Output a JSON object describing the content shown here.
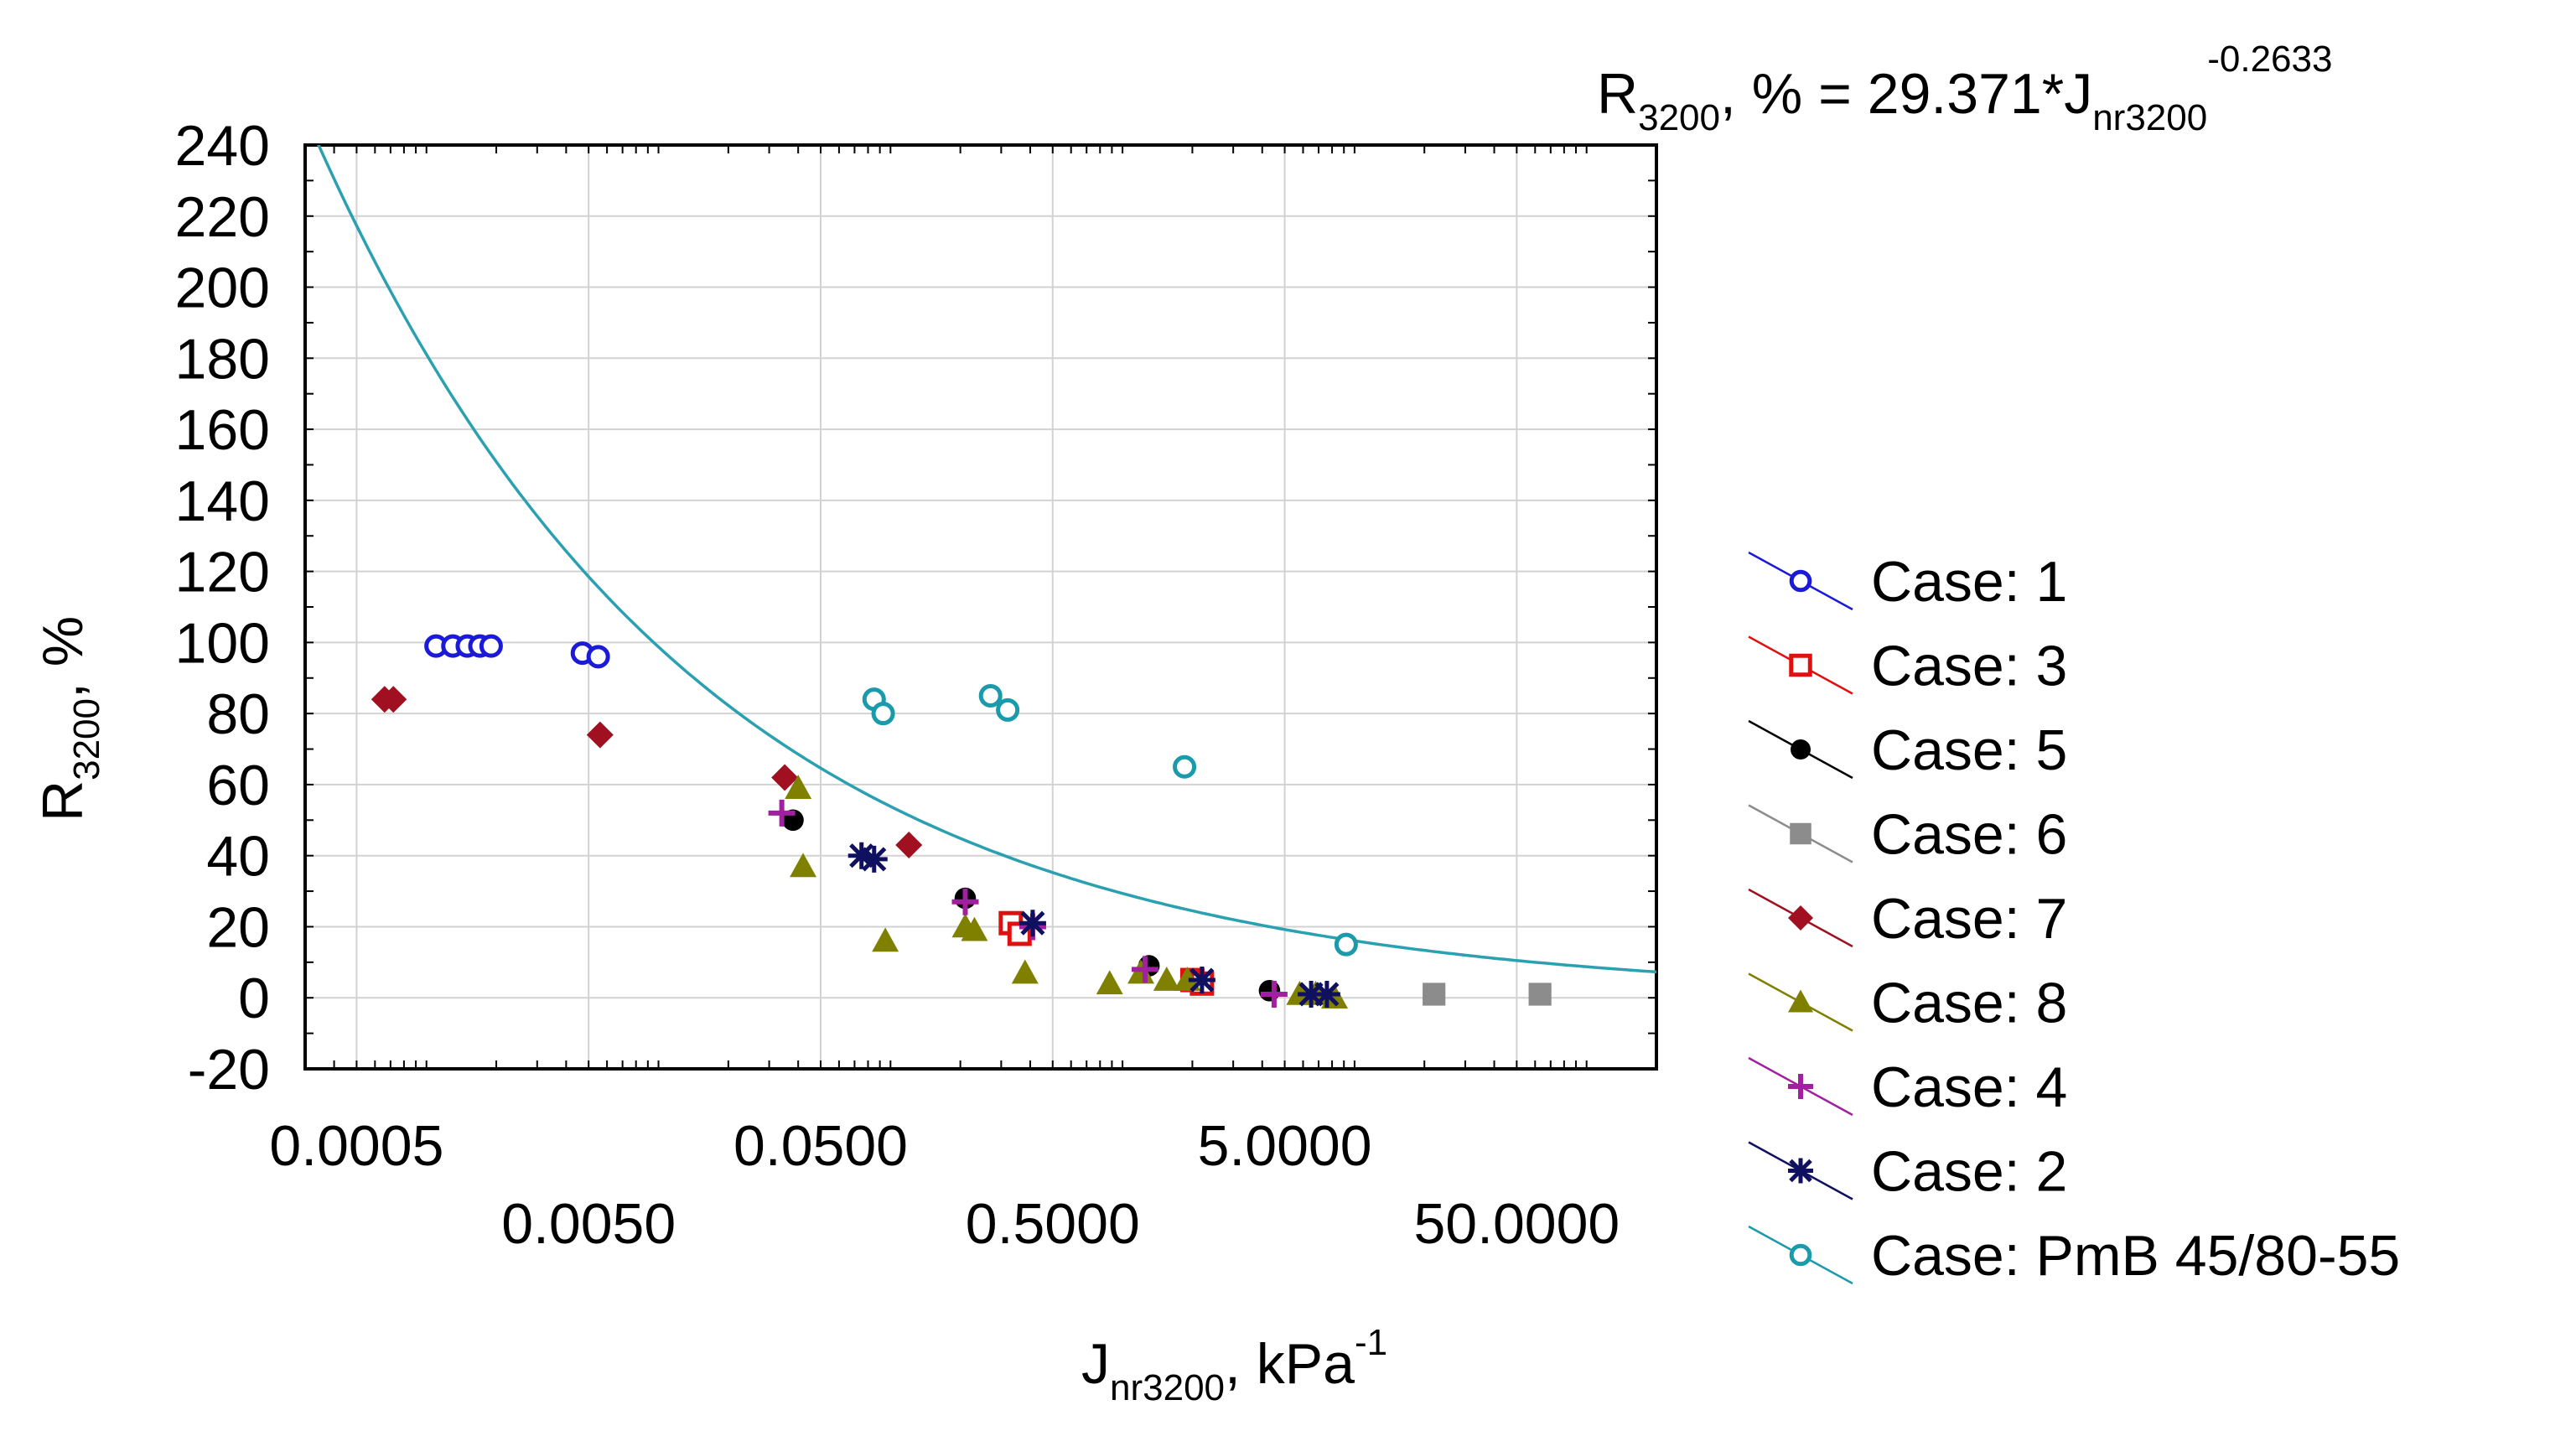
{
  "chart_data": {
    "type": "scatter",
    "title": "",
    "equation": {
      "lhs_main": "R",
      "lhs_sub": "3200",
      "middle": ", % = 29.371*J",
      "rhs_sub": "nr3200",
      "exponent": "-0.2633"
    },
    "fit": {
      "a": 29.371,
      "b": -0.2633,
      "color": "#2aa0b0"
    },
    "xlabel": {
      "main": "J",
      "sub": "nr3200",
      "rest": ", kPa",
      "sup": "-1"
    },
    "ylabel": {
      "main": "R",
      "sub": "3200",
      "rest": ", %"
    },
    "x_scale": "log",
    "xlim": [
      0.0003,
      200
    ],
    "ylim": [
      -20,
      240
    ],
    "y_ticks": [
      -20,
      0,
      20,
      40,
      60,
      80,
      100,
      120,
      140,
      160,
      180,
      200,
      220,
      240
    ],
    "y_tick_labels": [
      "-20",
      "0",
      "20",
      "40",
      "60",
      "80",
      "100",
      "120",
      "140",
      "160",
      "180",
      "200",
      "220",
      "240"
    ],
    "x_ticks": [
      0.0005,
      0.005,
      0.05,
      0.5,
      5,
      50
    ],
    "x_tick_labels": [
      "0.0005",
      "0.0050",
      "0.0500",
      "0.5000",
      "5.0000",
      "50.0000"
    ],
    "grid": true,
    "legend_position": "right",
    "series": [
      {
        "name": "Case: 1",
        "marker": "circle-open",
        "color": "#1a1ad8",
        "points": [
          [
            0.0011,
            99
          ],
          [
            0.0013,
            99
          ],
          [
            0.0015,
            99
          ],
          [
            0.0017,
            99
          ],
          [
            0.0019,
            99
          ],
          [
            0.0047,
            97
          ],
          [
            0.0055,
            96
          ]
        ]
      },
      {
        "name": "Case: 3",
        "marker": "square-open",
        "color": "#e01010",
        "points": [
          [
            0.33,
            21
          ],
          [
            0.36,
            18
          ],
          [
            2.0,
            5
          ],
          [
            2.2,
            4
          ]
        ]
      },
      {
        "name": "Case: 5",
        "marker": "circle-filled",
        "color": "#000000",
        "points": [
          [
            0.038,
            50
          ],
          [
            0.21,
            28
          ],
          [
            1.3,
            9
          ],
          [
            4.3,
            2
          ]
        ]
      },
      {
        "name": "Case: 6",
        "marker": "square-filled",
        "color": "#8c8c8c",
        "points": [
          [
            22,
            1
          ],
          [
            63,
            1
          ]
        ]
      },
      {
        "name": "Case: 7",
        "marker": "diamond-filled",
        "color": "#a01020",
        "points": [
          [
            0.00066,
            84
          ],
          [
            0.00072,
            84
          ],
          [
            0.0056,
            74
          ],
          [
            0.035,
            62
          ],
          [
            0.12,
            43
          ]
        ]
      },
      {
        "name": "Case: 8",
        "marker": "triangle-filled",
        "color": "#808000",
        "points": [
          [
            0.04,
            59
          ],
          [
            0.042,
            37
          ],
          [
            0.095,
            16
          ],
          [
            0.21,
            20
          ],
          [
            0.23,
            19
          ],
          [
            0.38,
            7
          ],
          [
            0.88,
            4
          ],
          [
            1.2,
            7
          ],
          [
            1.55,
            5
          ],
          [
            1.9,
            5
          ],
          [
            5.8,
            1
          ],
          [
            6.8,
            1
          ],
          [
            8.2,
            0
          ]
        ]
      },
      {
        "name": "Case: 4",
        "marker": "plus",
        "color": "#a020a0",
        "points": [
          [
            0.034,
            52
          ],
          [
            0.21,
            27
          ],
          [
            0.41,
            20
          ],
          [
            1.25,
            8
          ],
          [
            4.5,
            1
          ]
        ]
      },
      {
        "name": "Case: 2",
        "marker": "asterisk",
        "color": "#101060",
        "points": [
          [
            0.075,
            40
          ],
          [
            0.085,
            39
          ],
          [
            0.41,
            21
          ],
          [
            2.2,
            5
          ],
          [
            6.5,
            1
          ],
          [
            7.6,
            1
          ]
        ]
      },
      {
        "name": "Case: PmB 45/80-55",
        "marker": "circle-open",
        "color": "#1a9aaa",
        "points": [
          [
            0.085,
            84
          ],
          [
            0.093,
            80
          ],
          [
            0.27,
            85
          ],
          [
            0.32,
            81
          ],
          [
            1.85,
            65
          ],
          [
            9.2,
            15
          ]
        ]
      }
    ]
  }
}
